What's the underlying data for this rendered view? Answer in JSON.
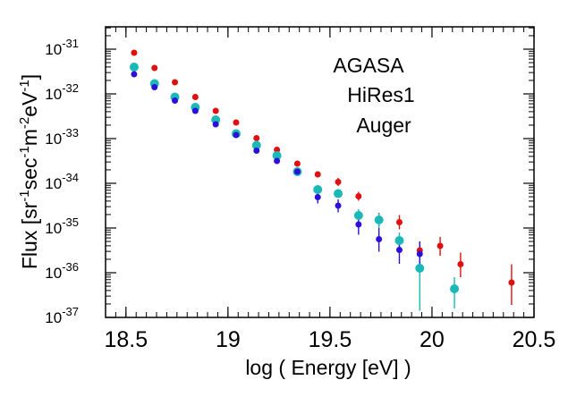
{
  "chart_data": {
    "type": "scatter",
    "title": "",
    "xlabel": "log ( Energy  [eV] )",
    "ylabel_parts": {
      "prefix": "Flux  [sr",
      "sup1": "-1",
      "mid1": "sec",
      "sup2": "-1",
      "mid2": "m",
      "sup3": "-2",
      "mid3": "eV",
      "sup4": "-1",
      "suffix": "]"
    },
    "xlim": [
      18.4,
      20.5
    ],
    "ylim_log10": [
      -37,
      -30.5
    ],
    "yscale": "log",
    "x_ticks": [
      {
        "value": 18.5,
        "label": "18.5"
      },
      {
        "value": 19,
        "label": "19"
      },
      {
        "value": 19.5,
        "label": "19.5"
      },
      {
        "value": 20,
        "label": "20"
      },
      {
        "value": 20.5,
        "label": "20.5"
      }
    ],
    "y_ticks": [
      {
        "exp": -31,
        "base": "10",
        "power": "-31"
      },
      {
        "exp": -32,
        "base": "10",
        "power": "-32"
      },
      {
        "exp": -33,
        "base": "10",
        "power": "-33"
      },
      {
        "exp": -34,
        "base": "10",
        "power": "-34"
      },
      {
        "exp": -35,
        "base": "10",
        "power": "-35"
      },
      {
        "exp": -36,
        "base": "10",
        "power": "-36"
      },
      {
        "exp": -37,
        "base": "10",
        "power": "-37"
      }
    ],
    "legend_placement": "top-right",
    "series": [
      {
        "name": "AGASA",
        "color": "#e01010",
        "marker_size": 3.5,
        "points": [
          {
            "x": 18.54,
            "y": -31.08,
            "lo": -31.1,
            "hi": -31.06
          },
          {
            "x": 18.64,
            "y": -31.42,
            "lo": -31.44,
            "hi": -31.4
          },
          {
            "x": 18.74,
            "y": -31.74,
            "lo": -31.77,
            "hi": -31.71
          },
          {
            "x": 18.84,
            "y": -32.07,
            "lo": -32.1,
            "hi": -32.04
          },
          {
            "x": 18.94,
            "y": -32.38,
            "lo": -32.42,
            "hi": -32.34
          },
          {
            "x": 19.04,
            "y": -32.64,
            "lo": -32.68,
            "hi": -32.6
          },
          {
            "x": 19.14,
            "y": -32.99,
            "lo": -33.04,
            "hi": -32.94
          },
          {
            "x": 19.24,
            "y": -33.25,
            "lo": -33.3,
            "hi": -33.2
          },
          {
            "x": 19.34,
            "y": -33.56,
            "lo": -33.62,
            "hi": -33.5
          },
          {
            "x": 19.44,
            "y": -33.8,
            "lo": -33.87,
            "hi": -33.73
          },
          {
            "x": 19.54,
            "y": -33.97,
            "lo": -34.06,
            "hi": -33.88
          },
          {
            "x": 19.64,
            "y": -34.29,
            "lo": -34.39,
            "hi": -34.19
          },
          {
            "x": 19.74,
            "y": -34.81,
            "lo": -34.96,
            "hi": -34.66
          },
          {
            "x": 19.84,
            "y": -34.87,
            "lo": -35.03,
            "hi": -34.71
          },
          {
            "x": 19.94,
            "y": -35.5,
            "lo": -35.75,
            "hi": -35.3
          },
          {
            "x": 20.04,
            "y": -35.4,
            "lo": -35.62,
            "hi": -35.2
          },
          {
            "x": 20.14,
            "y": -35.81,
            "lo": -36.1,
            "hi": -35.55
          },
          {
            "x": 20.39,
            "y": -36.22,
            "lo": -36.72,
            "hi": -35.81
          }
        ]
      },
      {
        "name": "HiRes1",
        "color": "#1ab8b8",
        "marker_size": 5,
        "points": [
          {
            "x": 18.54,
            "y": -31.4,
            "lo": -31.42,
            "hi": -31.38
          },
          {
            "x": 18.64,
            "y": -31.77,
            "lo": -31.79,
            "hi": -31.75
          },
          {
            "x": 18.74,
            "y": -32.07,
            "lo": -32.1,
            "hi": -32.04
          },
          {
            "x": 18.84,
            "y": -32.3,
            "lo": -32.33,
            "hi": -32.27
          },
          {
            "x": 18.94,
            "y": -32.58,
            "lo": -32.62,
            "hi": -32.54
          },
          {
            "x": 19.04,
            "y": -32.89,
            "lo": -32.93,
            "hi": -32.85
          },
          {
            "x": 19.14,
            "y": -33.15,
            "lo": -33.2,
            "hi": -33.1
          },
          {
            "x": 19.24,
            "y": -33.38,
            "lo": -33.44,
            "hi": -33.32
          },
          {
            "x": 19.34,
            "y": -33.74,
            "lo": -33.8,
            "hi": -33.68
          },
          {
            "x": 19.44,
            "y": -34.14,
            "lo": -34.22,
            "hi": -34.06
          },
          {
            "x": 19.54,
            "y": -34.23,
            "lo": -34.33,
            "hi": -34.13
          },
          {
            "x": 19.64,
            "y": -34.72,
            "lo": -34.88,
            "hi": -34.58
          },
          {
            "x": 19.74,
            "y": -34.82,
            "lo": -35.0,
            "hi": -34.67
          },
          {
            "x": 19.84,
            "y": -35.28,
            "lo": -35.5,
            "hi": -35.1
          },
          {
            "x": 19.94,
            "y": -35.9,
            "lo": -36.85,
            "hi": -35.55
          },
          {
            "x": 20.11,
            "y": -36.36,
            "lo": -36.8,
            "hi": -36.1
          }
        ]
      },
      {
        "name": "Auger",
        "color": "#2a10d8",
        "marker_size": 3.5,
        "points": [
          {
            "x": 18.54,
            "y": -31.56,
            "lo": -31.58,
            "hi": -31.54
          },
          {
            "x": 18.64,
            "y": -31.85,
            "lo": -31.88,
            "hi": -31.82
          },
          {
            "x": 18.74,
            "y": -32.15,
            "lo": -32.18,
            "hi": -32.12
          },
          {
            "x": 18.84,
            "y": -32.38,
            "lo": -32.42,
            "hi": -32.34
          },
          {
            "x": 18.94,
            "y": -32.68,
            "lo": -32.72,
            "hi": -32.64
          },
          {
            "x": 19.04,
            "y": -32.92,
            "lo": -32.97,
            "hi": -32.87
          },
          {
            "x": 19.14,
            "y": -33.27,
            "lo": -33.33,
            "hi": -33.21
          },
          {
            "x": 19.24,
            "y": -33.5,
            "lo": -33.57,
            "hi": -33.43
          },
          {
            "x": 19.34,
            "y": -33.74,
            "lo": -33.82,
            "hi": -33.66
          },
          {
            "x": 19.44,
            "y": -34.31,
            "lo": -34.45,
            "hi": -34.18
          },
          {
            "x": 19.54,
            "y": -34.5,
            "lo": -34.65,
            "hi": -34.36
          },
          {
            "x": 19.64,
            "y": -34.92,
            "lo": -35.15,
            "hi": -34.72
          },
          {
            "x": 19.74,
            "y": -35.25,
            "lo": -35.53,
            "hi": -35.0
          },
          {
            "x": 19.84,
            "y": -35.49,
            "lo": -35.8,
            "hi": -35.22
          },
          {
            "x": 19.94,
            "y": -35.58,
            "lo": -35.92,
            "hi": -35.3
          }
        ]
      }
    ]
  }
}
